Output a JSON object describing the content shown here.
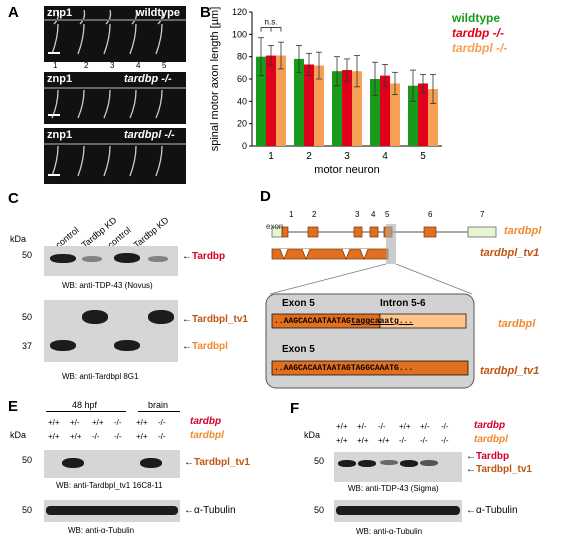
{
  "panels": {
    "A": "A",
    "B": "B",
    "C": "C",
    "D": "D",
    "E": "E",
    "F": "F"
  },
  "panelA": {
    "rows": [
      {
        "gene": "znp1",
        "label": "wildtype"
      },
      {
        "gene": "znp1",
        "label": "tardbp -/-"
      },
      {
        "gene": "znp1",
        "label": "tardbpl -/-"
      }
    ],
    "numbers": [
      "1",
      "2",
      "3",
      "4",
      "5"
    ]
  },
  "chart_data": {
    "type": "bar",
    "ylabel": "spinal motor axon length [µm]",
    "xlabel": "motor neuron",
    "categories": [
      "1",
      "2",
      "3",
      "4",
      "5"
    ],
    "ylim": [
      0,
      120
    ],
    "yticks": [
      "0",
      "20",
      "40",
      "60",
      "80",
      "100",
      "120"
    ],
    "series": [
      {
        "name": "wildtype",
        "color": "#1a9a1a",
        "values": [
          80,
          78,
          67,
          60,
          54
        ],
        "errors": [
          17,
          12,
          13,
          15,
          14
        ]
      },
      {
        "name": "tardbp -/-",
        "color": "#e0001b",
        "values": [
          81,
          73,
          68,
          63,
          56
        ],
        "errors": [
          9,
          10,
          10,
          10,
          8
        ]
      },
      {
        "name": "tardbpl -/-",
        "color": "#f5a055",
        "values": [
          81,
          72,
          67,
          56,
          51
        ],
        "errors": [
          12,
          12,
          14,
          10,
          13
        ]
      }
    ],
    "annotation": "n.s."
  },
  "panelC": {
    "kda": "kDa",
    "lanes": [
      "control",
      "Tardbp KD",
      "control",
      "Tardbp KD"
    ],
    "blot1": {
      "marker": "50",
      "target": "Tardbp",
      "wb": "WB:  anti-TDP-43 (Novus)"
    },
    "blot2": {
      "markers": [
        "50",
        "37"
      ],
      "targets": [
        "Tardbpl_tv1",
        "Tardbpl"
      ],
      "wb": "WB:  anti-Tardbpl  8G1"
    }
  },
  "panelD": {
    "exon_label": "exon",
    "exon_numbers": [
      "1",
      "2",
      "3",
      "4",
      "5",
      "6",
      "7"
    ],
    "gene1": "tardbpl",
    "gene2": "tardbpl_tv1",
    "exon5": "Exon 5",
    "intron": "Intron 5-6",
    "seq1_exon": "..AAGCACAATAATAG",
    "seq1_intron": "taggcaaatg...",
    "seq2_exon5": "Exon 5",
    "seq2": "..AAGCACAATAATAGTAGGCAAATG...",
    "label1": "tardbpl",
    "label2": "tardbpl_tv1"
  },
  "panelE": {
    "kda": "kDa",
    "group1": "48 hpf",
    "group2": "brain",
    "row1": [
      "+/+",
      "+/-",
      "+/+",
      "-/-",
      "+/+",
      "-/-"
    ],
    "row2": [
      "+/+",
      "+/+",
      "-/-",
      "-/-",
      "+/+",
      "-/-"
    ],
    "gene1": "tardbp",
    "gene2": "tardbpl",
    "blot1": {
      "marker": "50",
      "target": "Tardbpl_tv1",
      "wb": "WB:  anti-Tardbpl_tv1  16C8-11"
    },
    "blot2": {
      "marker": "50",
      "target": "α-Tubulin",
      "wb": "WB:  anti-α-Tubulin"
    }
  },
  "panelF": {
    "kda": "kDa",
    "row1": [
      "+/+",
      "+/-",
      "-/-",
      "+/+",
      "+/-",
      "-/-"
    ],
    "row2": [
      "+/+",
      "+/+",
      "+/+",
      "-/-",
      "-/-",
      "-/-"
    ],
    "gene1": "tardbp",
    "gene2": "tardbpl",
    "blot1": {
      "marker": "50",
      "targets": [
        "Tardbp",
        "Tardbpl_tv1"
      ],
      "wb": "WB:  anti-TDP-43 (Sigma)"
    },
    "blot2": {
      "marker": "50",
      "target": "α-Tubulin",
      "wb": "WB: anti-α-Tubulin"
    }
  }
}
